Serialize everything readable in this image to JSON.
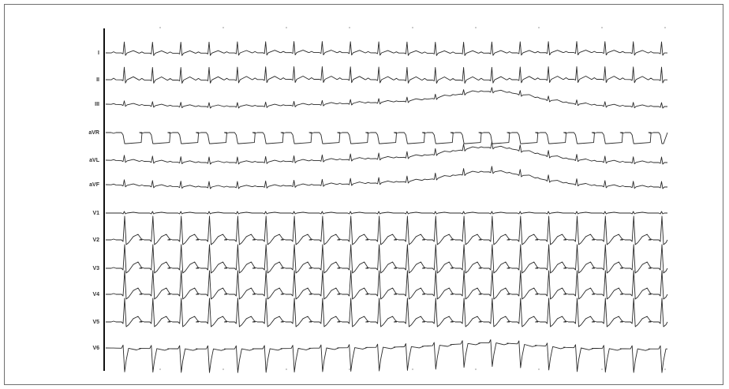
{
  "ecg": {
    "leads": [
      "I",
      "II",
      "III",
      "aVR",
      "aVL",
      "aVF",
      "V1",
      "V2",
      "V3",
      "V4",
      "V5",
      "V6"
    ],
    "beat_count": 20,
    "wander_leads": [
      "III",
      "aVL",
      "aVF",
      "V6"
    ],
    "colors": {
      "trace": "#2a2a2a",
      "axis": "#111111",
      "frame": "#6f6f6f",
      "label": "#333333"
    }
  }
}
